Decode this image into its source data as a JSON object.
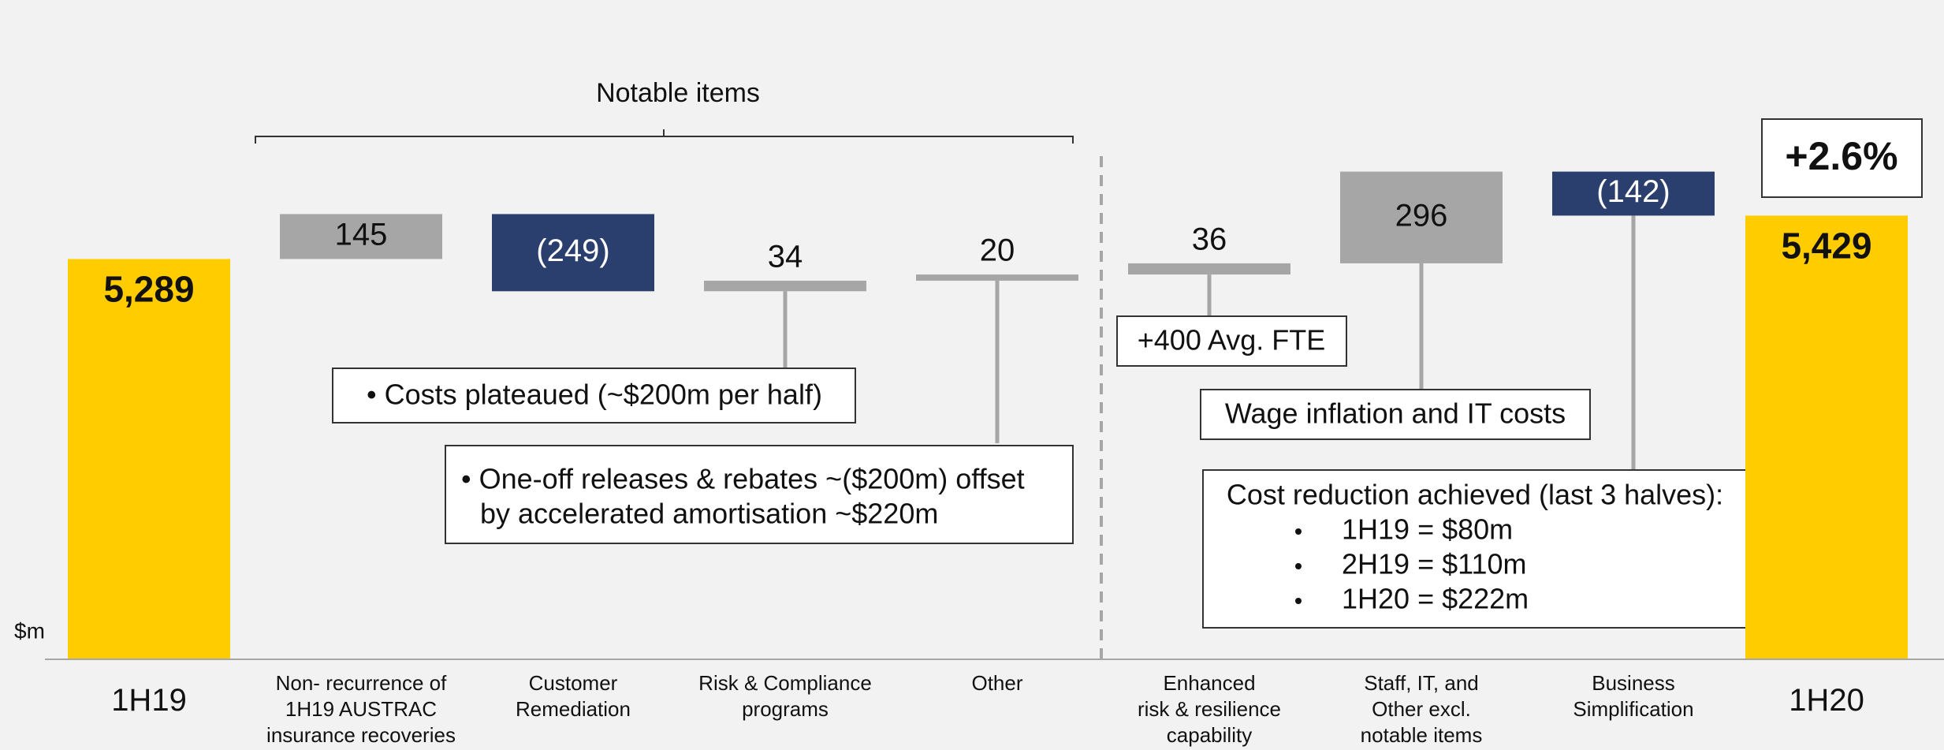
{
  "chart_data": {
    "type": "waterfall",
    "unit_label": "$m",
    "categories": [
      "1H19",
      "Non- recurrence of\n1H19 AUSTRAC\ninsurance recoveries",
      "Customer\nRemediation",
      "Risk & Compliance\nprograms",
      "Other",
      "Enhanced\nrisk & resilience\ncapability",
      "Staff, IT, and\nOther excl.\nnotable items",
      "Business\nSimplification",
      "1H20"
    ],
    "values": [
      5289,
      145,
      -249,
      34,
      20,
      36,
      296,
      -142,
      5429
    ],
    "value_labels": [
      "5,289",
      "145",
      "(249)",
      "34",
      "20",
      "36",
      "296",
      "(142)",
      "5,429"
    ],
    "totals": [
      true,
      false,
      false,
      false,
      false,
      false,
      false,
      false,
      true
    ],
    "colors": {
      "total": "#ffcc00",
      "increase": "#a6a6a6",
      "decrease": "#2b3f6e"
    },
    "ylim": [
      4000,
      6000
    ],
    "group_label": "Notable items",
    "change_label": "+2.6%",
    "annotations": {
      "plateau": "• Costs plateaued (~$200m per half)",
      "oneoff": [
        "• One-off releases & rebates ~($200m) offset",
        "by accelerated amortisation ~$220m"
      ],
      "fte": "+400 Avg. FTE",
      "wage": "Wage inflation and IT costs",
      "reduction": {
        "title": "Cost reduction achieved (last 3 halves):",
        "items": [
          "1H19 = $80m",
          "2H19 = $110m",
          "1H20 = $222m"
        ]
      }
    }
  }
}
